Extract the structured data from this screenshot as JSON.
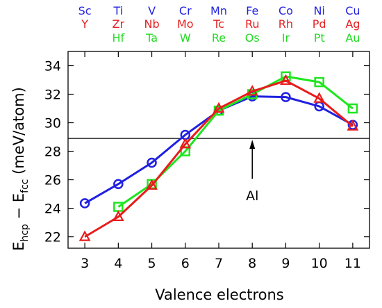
{
  "chart_data": {
    "type": "line",
    "xlabel": "Valence electrons",
    "ylabel_main": "E",
    "ylabel_sub1": "hcp",
    "ylabel_dash": " − E",
    "ylabel_sub2": "fcc",
    "ylabel_unit": " (meV/atom)",
    "xlim": [
      2.5,
      11.5
    ],
    "ylim": [
      21.2,
      35
    ],
    "xticks": [
      3,
      4,
      5,
      6,
      7,
      8,
      9,
      10,
      11
    ],
    "yticks": [
      22,
      24,
      26,
      28,
      30,
      32,
      34
    ],
    "grid": false,
    "legend": "none",
    "reference_line": {
      "y": 28.9,
      "label": "Al",
      "arrow_x": 8
    },
    "element_rows": [
      {
        "color": "#2323e0",
        "labels": [
          "Sc",
          "Ti",
          "V",
          "Cr",
          "Mn",
          "Fe",
          "Co",
          "Ni",
          "Cu"
        ]
      },
      {
        "color": "#e62020",
        "labels": [
          "Y",
          "Zr",
          "Nb",
          "Mo",
          "Tc",
          "Ru",
          "Rh",
          "Pd",
          "Ag"
        ]
      },
      {
        "color": "#22dd22",
        "labels": [
          "",
          "Hf",
          "Ta",
          "W",
          "Re",
          "Os",
          "Ir",
          "Pt",
          "Au"
        ]
      }
    ],
    "series": [
      {
        "color": "#2020e0",
        "marker": "circle",
        "x": [
          3,
          4,
          5,
          6,
          7,
          8,
          9,
          10,
          11
        ],
        "values": [
          24.35,
          25.7,
          27.2,
          29.15,
          30.85,
          31.85,
          31.8,
          31.15,
          29.85
        ]
      },
      {
        "color": "#e81c1c",
        "marker": "triangle",
        "x": [
          3,
          4,
          5,
          6,
          7,
          8,
          9,
          10,
          11
        ],
        "values": [
          22.0,
          23.4,
          25.6,
          28.5,
          31.0,
          32.2,
          32.95,
          31.7,
          29.75
        ]
      },
      {
        "color": "#1ee61e",
        "marker": "square",
        "x": [
          4,
          5,
          6,
          7,
          8,
          9,
          10,
          11
        ],
        "values": [
          24.1,
          25.7,
          28.0,
          30.85,
          32.0,
          33.25,
          32.85,
          31.0
        ]
      }
    ]
  }
}
